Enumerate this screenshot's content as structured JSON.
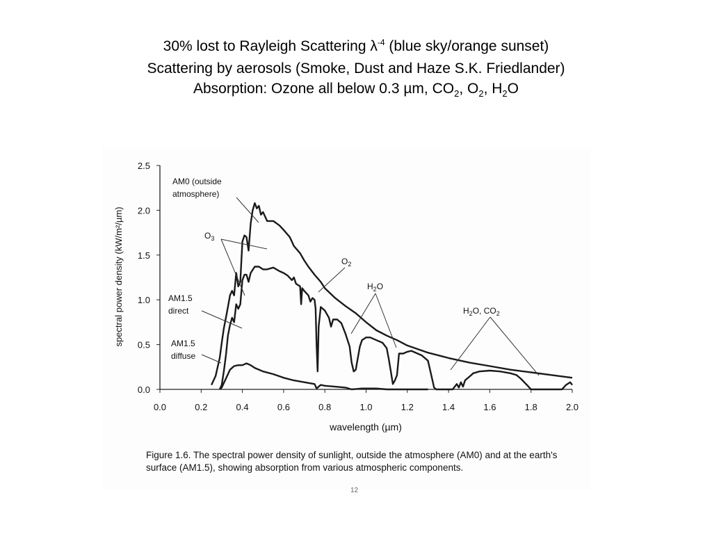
{
  "slide": {
    "line1": {
      "pre": "30% lost to Rayleigh Scattering λ",
      "sup": "-4",
      "post": " (blue sky/orange sunset)"
    },
    "line2": "Scattering by aerosols (Smoke, Dust and Haze S.K. Friedlander)",
    "line3": {
      "pre": "Absorption: Ozone all below 0.3 µm, CO",
      "sub1": "2",
      "mid1": ", O",
      "sub2": "2",
      "mid2": ", H",
      "sub3": "2",
      "post": "O"
    },
    "page_number": "12"
  },
  "caption": "Figure 1.6. The spectral power density of sunlight, outside the atmosphere (AM0) and at the earth's surface (AM1.5), showing absorption from various atmospheric components.",
  "chart_data": {
    "type": "line",
    "xlabel": "wavelength (µm)",
    "ylabel": "spectral power density (kW/m²/µm)",
    "xlim": [
      0,
      2.0
    ],
    "ylim": [
      0,
      2.5
    ],
    "xticks": [
      0.0,
      0.2,
      0.4,
      0.6,
      0.8,
      1.0,
      1.2,
      1.4,
      1.6,
      1.8,
      2.0
    ],
    "xtick_labels": [
      "0.0",
      "0.2",
      "0.4",
      "0.6",
      "0.8",
      "1.0",
      "1.2",
      "1.4",
      "1.6",
      "1.8",
      "2.0"
    ],
    "yticks": [
      0.0,
      0.5,
      1.0,
      1.5,
      2.0,
      2.5
    ],
    "ytick_labels": [
      "0.0",
      "0.5",
      "1.0",
      "1.5",
      "2.0",
      "2.5"
    ],
    "color": "#1a1a1a",
    "series": [
      {
        "name": "AM0 (outside atmosphere)",
        "points": [
          [
            0.25,
            0.05
          ],
          [
            0.27,
            0.15
          ],
          [
            0.29,
            0.35
          ],
          [
            0.3,
            0.52
          ],
          [
            0.31,
            0.68
          ],
          [
            0.32,
            0.8
          ],
          [
            0.33,
            0.92
          ],
          [
            0.34,
            1.05
          ],
          [
            0.35,
            1.1
          ],
          [
            0.36,
            1.05
          ],
          [
            0.37,
            1.3
          ],
          [
            0.38,
            1.15
          ],
          [
            0.39,
            1.2
          ],
          [
            0.4,
            1.65
          ],
          [
            0.41,
            1.72
          ],
          [
            0.42,
            1.7
          ],
          [
            0.43,
            1.55
          ],
          [
            0.44,
            1.85
          ],
          [
            0.45,
            2.0
          ],
          [
            0.46,
            2.08
          ],
          [
            0.47,
            2.02
          ],
          [
            0.48,
            2.05
          ],
          [
            0.49,
            1.95
          ],
          [
            0.5,
            1.98
          ],
          [
            0.52,
            1.88
          ],
          [
            0.55,
            1.88
          ],
          [
            0.58,
            1.83
          ],
          [
            0.6,
            1.78
          ],
          [
            0.63,
            1.7
          ],
          [
            0.65,
            1.6
          ],
          [
            0.68,
            1.52
          ],
          [
            0.7,
            1.44
          ],
          [
            0.72,
            1.37
          ],
          [
            0.75,
            1.28
          ],
          [
            0.78,
            1.2
          ],
          [
            0.8,
            1.13
          ],
          [
            0.85,
            1.02
          ],
          [
            0.9,
            0.93
          ],
          [
            0.95,
            0.85
          ],
          [
            1.0,
            0.75
          ],
          [
            1.05,
            0.66
          ],
          [
            1.1,
            0.6
          ],
          [
            1.15,
            0.55
          ],
          [
            1.2,
            0.49
          ],
          [
            1.3,
            0.41
          ],
          [
            1.4,
            0.35
          ],
          [
            1.5,
            0.3
          ],
          [
            1.6,
            0.26
          ],
          [
            1.7,
            0.22
          ],
          [
            1.8,
            0.19
          ],
          [
            1.9,
            0.16
          ],
          [
            2.0,
            0.13
          ]
        ]
      },
      {
        "name": "AM1.5 direct",
        "points": [
          [
            0.29,
            0.0
          ],
          [
            0.3,
            0.05
          ],
          [
            0.31,
            0.2
          ],
          [
            0.32,
            0.38
          ],
          [
            0.33,
            0.6
          ],
          [
            0.34,
            0.72
          ],
          [
            0.35,
            0.8
          ],
          [
            0.36,
            0.75
          ],
          [
            0.37,
            0.95
          ],
          [
            0.38,
            0.9
          ],
          [
            0.39,
            0.95
          ],
          [
            0.4,
            1.22
          ],
          [
            0.41,
            1.28
          ],
          [
            0.42,
            1.28
          ],
          [
            0.43,
            1.2
          ],
          [
            0.44,
            1.3
          ],
          [
            0.46,
            1.37
          ],
          [
            0.48,
            1.37
          ],
          [
            0.5,
            1.34
          ],
          [
            0.52,
            1.34
          ],
          [
            0.55,
            1.36
          ],
          [
            0.58,
            1.32
          ],
          [
            0.6,
            1.3
          ],
          [
            0.62,
            1.27
          ],
          [
            0.64,
            1.22
          ],
          [
            0.65,
            1.25
          ],
          [
            0.66,
            1.18
          ],
          [
            0.68,
            1.15
          ],
          [
            0.685,
            0.95
          ],
          [
            0.69,
            1.13
          ],
          [
            0.7,
            1.1
          ],
          [
            0.72,
            1.05
          ],
          [
            0.73,
            0.98
          ],
          [
            0.74,
            1.02
          ],
          [
            0.75,
            1.0
          ],
          [
            0.755,
            0.9
          ],
          [
            0.76,
            0.5
          ],
          [
            0.765,
            0.2
          ],
          [
            0.77,
            0.7
          ],
          [
            0.78,
            0.92
          ],
          [
            0.8,
            0.88
          ],
          [
            0.82,
            0.8
          ],
          [
            0.83,
            0.7
          ],
          [
            0.84,
            0.78
          ],
          [
            0.86,
            0.78
          ],
          [
            0.88,
            0.74
          ],
          [
            0.9,
            0.62
          ],
          [
            0.92,
            0.48
          ],
          [
            0.93,
            0.3
          ],
          [
            0.94,
            0.2
          ],
          [
            0.95,
            0.22
          ],
          [
            0.96,
            0.35
          ],
          [
            0.97,
            0.48
          ],
          [
            0.98,
            0.55
          ],
          [
            1.0,
            0.58
          ],
          [
            1.02,
            0.58
          ],
          [
            1.05,
            0.55
          ],
          [
            1.08,
            0.52
          ],
          [
            1.1,
            0.46
          ],
          [
            1.11,
            0.34
          ],
          [
            1.12,
            0.2
          ],
          [
            1.13,
            0.06
          ],
          [
            1.14,
            0.1
          ],
          [
            1.15,
            0.16
          ],
          [
            1.16,
            0.4
          ],
          [
            1.18,
            0.4
          ],
          [
            1.2,
            0.42
          ],
          [
            1.22,
            0.43
          ],
          [
            1.25,
            0.4
          ],
          [
            1.27,
            0.38
          ],
          [
            1.3,
            0.32
          ],
          [
            1.32,
            0.12
          ],
          [
            1.33,
            0.02
          ],
          [
            1.34,
            0.0
          ],
          [
            1.42,
            0.0
          ],
          [
            1.44,
            0.06
          ],
          [
            1.45,
            0.02
          ],
          [
            1.46,
            0.08
          ],
          [
            1.47,
            0.03
          ],
          [
            1.48,
            0.1
          ],
          [
            1.5,
            0.14
          ],
          [
            1.52,
            0.18
          ],
          [
            1.55,
            0.2
          ],
          [
            1.6,
            0.21
          ],
          [
            1.65,
            0.2
          ],
          [
            1.7,
            0.18
          ],
          [
            1.73,
            0.16
          ],
          [
            1.75,
            0.12
          ],
          [
            1.78,
            0.05
          ],
          [
            1.8,
            0.0
          ],
          [
            1.95,
            0.0
          ],
          [
            1.97,
            0.05
          ],
          [
            1.99,
            0.08
          ],
          [
            2.0,
            0.05
          ]
        ]
      },
      {
        "name": "AM1.5 diffuse",
        "points": [
          [
            0.29,
            0.0
          ],
          [
            0.3,
            0.02
          ],
          [
            0.32,
            0.12
          ],
          [
            0.34,
            0.22
          ],
          [
            0.36,
            0.26
          ],
          [
            0.38,
            0.27
          ],
          [
            0.4,
            0.27
          ],
          [
            0.42,
            0.29
          ],
          [
            0.44,
            0.27
          ],
          [
            0.46,
            0.24
          ],
          [
            0.5,
            0.2
          ],
          [
            0.55,
            0.17
          ],
          [
            0.6,
            0.13
          ],
          [
            0.65,
            0.1
          ],
          [
            0.7,
            0.08
          ],
          [
            0.75,
            0.06
          ],
          [
            0.76,
            0.01
          ],
          [
            0.78,
            0.05
          ],
          [
            0.8,
            0.04
          ],
          [
            0.85,
            0.03
          ],
          [
            0.9,
            0.02
          ],
          [
            0.93,
            0.0
          ],
          [
            0.98,
            0.01
          ],
          [
            1.05,
            0.01
          ],
          [
            1.1,
            0.0
          ],
          [
            1.3,
            0.0
          ]
        ]
      }
    ],
    "annotations": [
      {
        "id": "am0",
        "lines": [
          "AM0 (outside",
          "atmosphere)"
        ]
      },
      {
        "id": "o3",
        "text": "O",
        "sub": "3"
      },
      {
        "id": "o2",
        "text": "O",
        "sub": "2"
      },
      {
        "id": "h2o",
        "text": "H",
        "sub": "2",
        "post": "O"
      },
      {
        "id": "h2o-co2",
        "text": "H",
        "sub": "2",
        "post": "O, CO",
        "sub2": "2"
      },
      {
        "id": "am15-direct",
        "lines": [
          "AM1.5",
          "direct"
        ]
      },
      {
        "id": "am15-diffuse",
        "lines": [
          "AM1.5",
          "diffuse"
        ]
      }
    ]
  }
}
